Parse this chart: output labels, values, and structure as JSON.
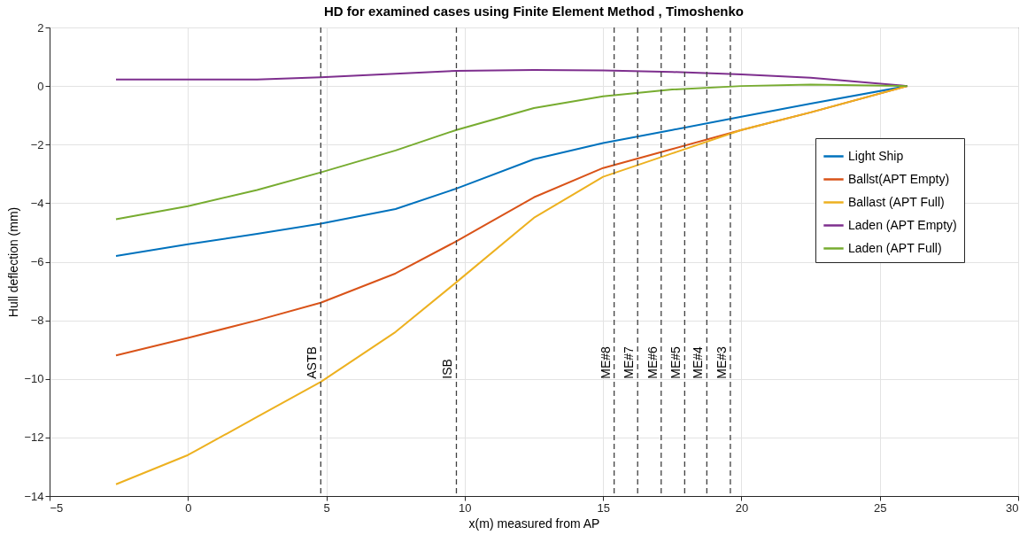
{
  "chart_data": {
    "type": "line",
    "title": "HD for examined cases  using Finite Element Method , Timoshenko",
    "xlabel": "x(m) measured from AP",
    "ylabel": "Hull deflection (mm)",
    "x": [
      -2.6,
      0,
      2.5,
      4.8,
      7.5,
      9.7,
      12.5,
      15,
      17.5,
      20,
      22.5,
      26
    ],
    "series": [
      {
        "name": "Light Ship",
        "color": "#0072bd",
        "values": [
          -5.8,
          -5.4,
          -5.05,
          -4.7,
          -4.2,
          -3.5,
          -2.5,
          -1.95,
          -1.5,
          -1.05,
          -0.6,
          0
        ]
      },
      {
        "name": "Ballst(APT Empty)",
        "color": "#d95319",
        "values": [
          -9.2,
          -8.6,
          -8.0,
          -7.4,
          -6.4,
          -5.3,
          -3.8,
          -2.8,
          -2.15,
          -1.5,
          -0.9,
          0
        ]
      },
      {
        "name": "Ballast (APT Full)",
        "color": "#edb120",
        "values": [
          -13.6,
          -12.6,
          -11.3,
          -10.1,
          -8.4,
          -6.7,
          -4.5,
          -3.1,
          -2.3,
          -1.5,
          -0.9,
          0
        ]
      },
      {
        "name": "Laden (APT Empty)",
        "color": "#7e2f8e",
        "values": [
          0.22,
          0.22,
          0.22,
          0.3,
          0.42,
          0.52,
          0.55,
          0.53,
          0.48,
          0.4,
          0.28,
          0
        ]
      },
      {
        "name": "Laden (APT Full)",
        "color": "#77ac30",
        "values": [
          -4.55,
          -4.1,
          -3.55,
          -2.95,
          -2.2,
          -1.5,
          -0.75,
          -0.35,
          -0.12,
          0,
          0.05,
          0
        ]
      }
    ],
    "ref_lines": [
      {
        "axis": "x",
        "value": 4.8,
        "label": "ASTB",
        "color": "#404040",
        "line_style": "dashed"
      },
      {
        "axis": "x",
        "value": 9.7,
        "label": "ISB",
        "color": "#404040",
        "line_style": "dashed"
      },
      {
        "axis": "x",
        "value": 15.4,
        "label": "ME#8",
        "color": "#404040",
        "line_style": "dashed"
      },
      {
        "axis": "x",
        "value": 16.25,
        "label": "ME#7",
        "color": "#404040",
        "line_style": "dashed"
      },
      {
        "axis": "x",
        "value": 17.1,
        "label": "ME#6",
        "color": "#404040",
        "line_style": "dashed"
      },
      {
        "axis": "x",
        "value": 17.95,
        "label": "ME#5",
        "color": "#404040",
        "line_style": "dashed"
      },
      {
        "axis": "x",
        "value": 18.75,
        "label": "ME#4",
        "color": "#404040",
        "line_style": "dashed"
      },
      {
        "axis": "x",
        "value": 19.6,
        "label": "ME#3",
        "color": "#404040",
        "line_style": "dashed"
      }
    ],
    "xlim": [
      -5,
      30
    ],
    "xticks": [
      -5,
      0,
      5,
      10,
      15,
      20,
      25,
      30
    ],
    "ylim": [
      -14,
      2
    ],
    "yticks": [
      -14,
      -12,
      -10,
      -8,
      -6,
      -4,
      -2,
      0,
      2
    ],
    "grid": true,
    "legend": "right",
    "line_style": "solid",
    "marker": "none"
  }
}
